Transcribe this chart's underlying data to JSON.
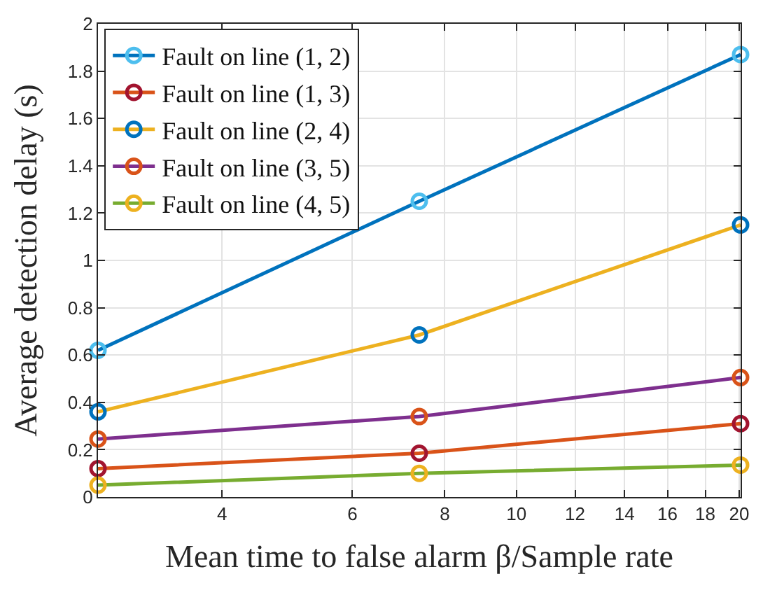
{
  "chart_data": {
    "type": "line",
    "xlabel": "Mean time to false alarm β/Sample rate",
    "ylabel": "Average detection delay (s)",
    "x": [
      2.718,
      7.389,
      20.09
    ],
    "series": [
      {
        "name": "Fault on line (1, 2)",
        "color": "#0072bd",
        "colors": [
          "#4dbeee",
          "#4dbeee",
          "#4dbeee"
        ],
        "values": [
          0.62,
          1.25,
          1.87
        ]
      },
      {
        "name": "Fault on line (1, 3)",
        "color": "#d95319",
        "colors": [
          "#a2142f",
          "#a2142f",
          "#a2142f"
        ],
        "values": [
          0.12,
          0.185,
          0.31
        ]
      },
      {
        "name": "Fault on line (2, 4)",
        "color": "#edb120",
        "colors": [
          "#0072bd",
          "#0072bd",
          "#0072bd"
        ],
        "values": [
          0.36,
          0.685,
          1.15
        ]
      },
      {
        "name": "Fault on line (3, 5)",
        "color": "#7e2f8e",
        "colors": [
          "#d95319",
          "#d95319",
          "#d95319"
        ],
        "values": [
          0.245,
          0.34,
          0.505
        ]
      },
      {
        "name": "Fault on line (4, 5)",
        "color": "#77ac30",
        "colors": [
          "#edb120",
          "#edb120",
          "#edb120"
        ],
        "values": [
          0.05,
          0.1,
          0.135
        ]
      }
    ],
    "log": "x",
    "xlim": [
      2.718,
      20.09
    ],
    "xticks": [
      4,
      6,
      8,
      10,
      12,
      14,
      16,
      18,
      20
    ],
    "ylim": [
      0,
      2
    ],
    "yticks": [
      0,
      0.2,
      0.4,
      0.6,
      0.8,
      1,
      1.2,
      1.4,
      1.6,
      1.8,
      2
    ],
    "grid": true,
    "legend": "top left",
    "marker": "circle",
    "line_style": "solid"
  }
}
